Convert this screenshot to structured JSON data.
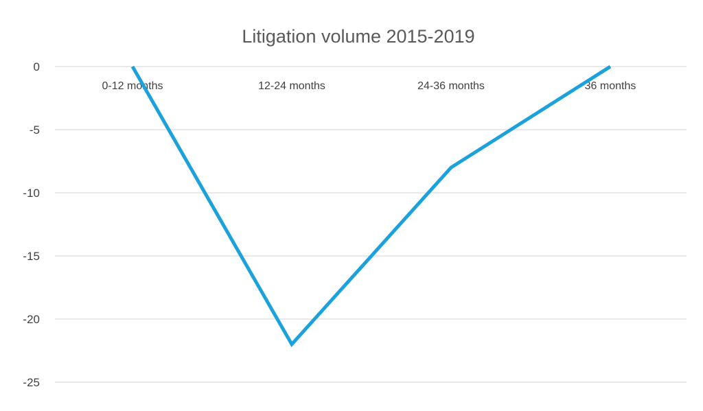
{
  "chart_data": {
    "type": "line",
    "title": "Litigation volume 2015-2019",
    "xlabel": "",
    "ylabel": "",
    "categories": [
      "0-12 months",
      "12-24 months",
      "24-36 months",
      "36 months"
    ],
    "series": [
      {
        "name": "Litigation volume",
        "values": [
          0,
          -22,
          -8,
          0
        ],
        "color": "#1ba1dc"
      }
    ],
    "ylim": [
      -25,
      0
    ],
    "yticks": [
      0,
      -5,
      -10,
      -15,
      -20,
      -25
    ],
    "grid": true,
    "legend": "none"
  }
}
